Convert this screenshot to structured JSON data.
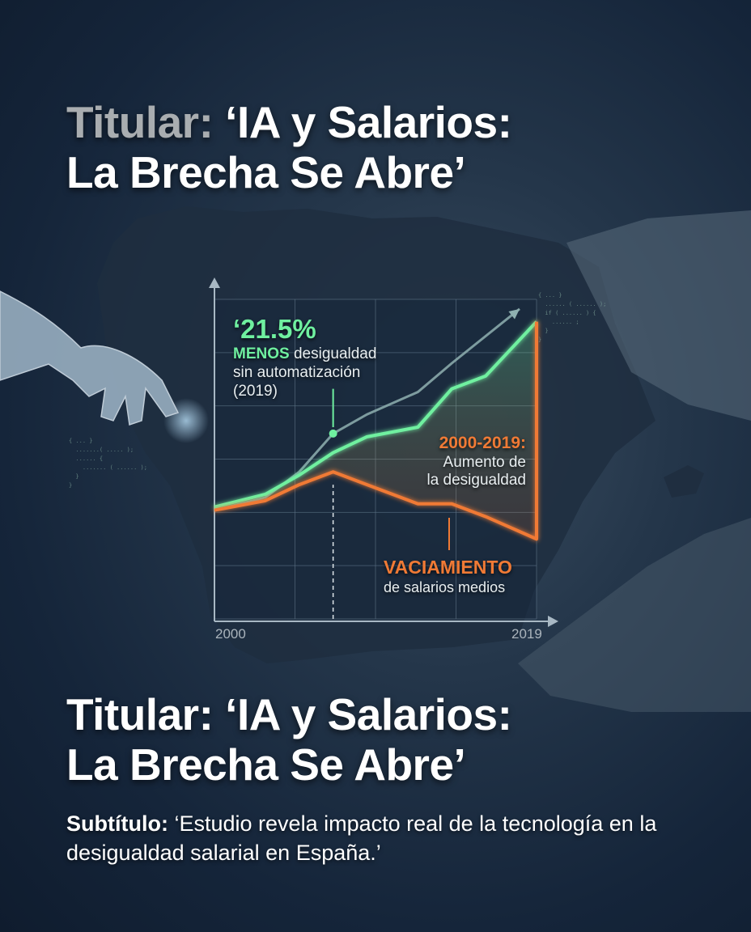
{
  "header": {
    "title_prefix": "Titular:",
    "title_line1": "‘IA y Salarios:",
    "title_line2": "La Brecha Se Abre’"
  },
  "footer": {
    "title_prefix": "Titular:",
    "title_line1": "‘IA y Salarios:",
    "title_line2": "La Brecha Se Abre’",
    "subtitle_label": "Subtítulo:",
    "subtitle_text": "‘Estudio revela impacto real de la tecnología en la desigualdad salarial en España.’"
  },
  "colors": {
    "background": "#1a2a3e",
    "green": "#6ff0a0",
    "orange": "#f07a35",
    "trend": "#8fb0b0"
  },
  "chart_data": {
    "type": "line",
    "title": "",
    "xlabel": "",
    "ylabel": "",
    "xlim": [
      2000,
      2019
    ],
    "ylim": [
      0,
      100
    ],
    "x_tick_labels": [
      "2000",
      "2019"
    ],
    "grid": true,
    "series": [
      {
        "key": "green",
        "color": "#6ff0a0",
        "x": [
          2000,
          2003,
          2005,
          2007,
          2009,
          2012,
          2014,
          2016,
          2019
        ],
        "values": [
          35,
          39,
          45,
          52,
          57,
          60,
          72,
          76,
          93
        ]
      },
      {
        "key": "orange",
        "color": "#f07a35",
        "x": [
          2000,
          2003,
          2005,
          2007,
          2009,
          2012,
          2014,
          2016,
          2019
        ],
        "values": [
          34,
          37,
          42,
          46,
          42,
          36,
          36,
          32,
          25
        ]
      },
      {
        "key": "trend",
        "color": "#8fb0b0",
        "x": [
          2000,
          2003,
          2005,
          2007,
          2009,
          2012,
          2014,
          2018
        ],
        "values": [
          34,
          38,
          46,
          58,
          64,
          71,
          80,
          97
        ]
      }
    ],
    "marker_year": 2007,
    "annotations": {
      "green_value": "‘21.5%",
      "green_em": "MENOS",
      "green_text1": " desigualdad",
      "green_text2": "sin automatización",
      "green_text3": "(2019)",
      "orange_period": "2000-2019:",
      "orange_text1": "Aumento de",
      "orange_text2": "la desigualdad",
      "vac_title": "VACIAMIENTO",
      "vac_text": "de salarios medios"
    }
  }
}
